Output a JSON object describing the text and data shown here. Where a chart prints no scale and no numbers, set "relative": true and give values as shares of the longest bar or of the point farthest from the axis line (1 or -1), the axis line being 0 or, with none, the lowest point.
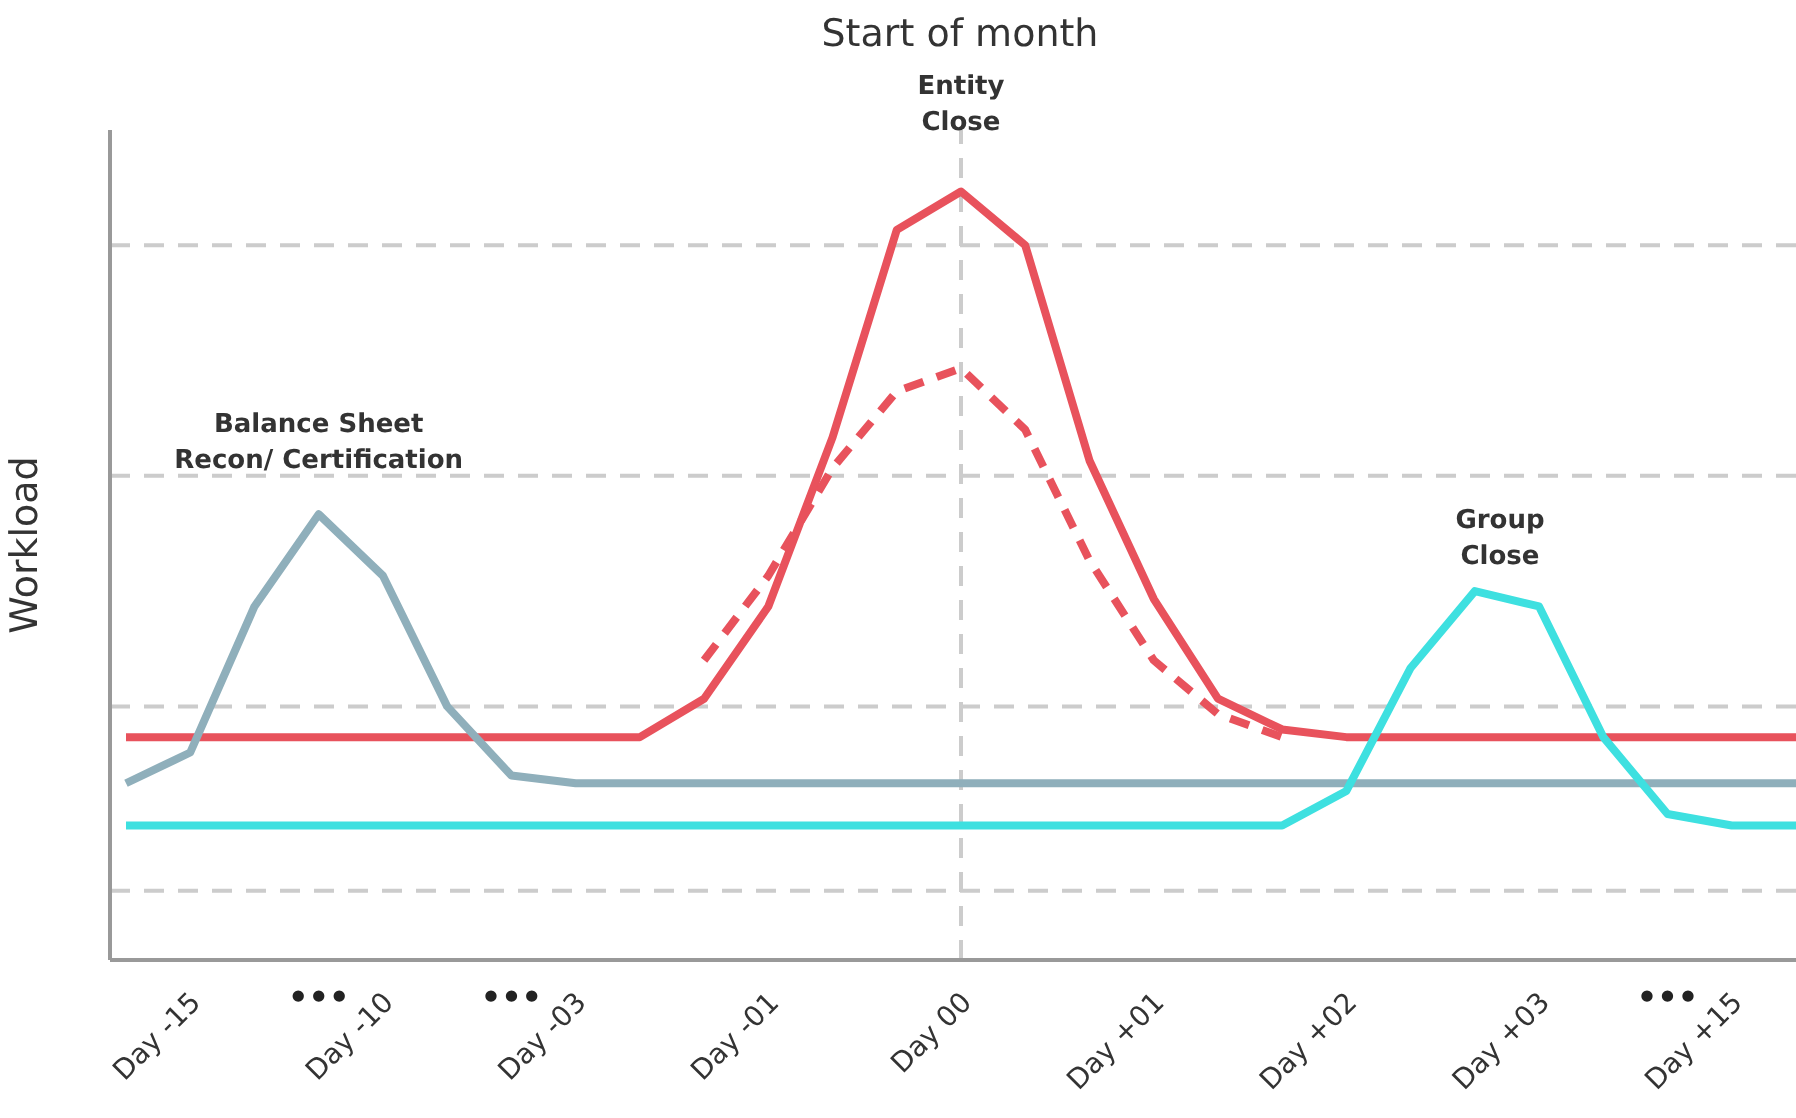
{
  "chart_data": {
    "type": "line",
    "title": "Start of month",
    "ylabel": "Workload",
    "relative": true,
    "marker": "none",
    "categories": [
      null,
      "Day -15",
      null,
      "•••",
      "Day -10",
      null,
      "•••",
      "Day -03",
      null,
      null,
      "Day -01",
      null,
      null,
      "Day 00",
      null,
      null,
      "Day +01",
      null,
      null,
      "Day +02",
      null,
      null,
      "Day +03",
      null,
      "•••",
      "Day +15",
      null
    ],
    "series": [
      {
        "color": "#e8525c",
        "line_style": "solid",
        "values": [
          0.29,
          0.29,
          0.29,
          0.29,
          0.29,
          0.29,
          0.29,
          0.29,
          0.29,
          0.34,
          0.46,
          0.68,
          0.95,
          1,
          0.93,
          0.65,
          0.47,
          0.34,
          0.3,
          0.29,
          0.29,
          0.29,
          0.29,
          0.29,
          0.29,
          0.29,
          0.29
        ]
      },
      {
        "color": "#e8525c",
        "line_style": "dashed",
        "values": [
          null,
          null,
          null,
          null,
          null,
          null,
          null,
          null,
          null,
          0.39,
          0.5,
          0.64,
          0.74,
          0.77,
          0.69,
          0.52,
          0.39,
          0.32,
          0.29,
          null,
          null,
          null,
          null,
          null,
          null,
          null,
          null
        ]
      },
      {
        "color": "#8fafbb",
        "line_style": "solid",
        "values": [
          0.23,
          0.27,
          0.46,
          0.58,
          0.5,
          0.33,
          0.24,
          0.23,
          0.23,
          0.23,
          0.23,
          0.23,
          0.23,
          0.23,
          0.23,
          0.23,
          0.23,
          0.23,
          0.23,
          0.23,
          0.23,
          0.23,
          0.23,
          0.23,
          0.23,
          0.23,
          0.23
        ]
      },
      {
        "color": "#3ee0e0",
        "line_style": "solid",
        "values": [
          0.175,
          0.175,
          0.175,
          0.175,
          0.175,
          0.175,
          0.175,
          0.175,
          0.175,
          0.175,
          0.175,
          0.175,
          0.175,
          0.175,
          0.175,
          0.175,
          0.175,
          0.175,
          0.175,
          0.22,
          0.38,
          0.48,
          0.46,
          0.29,
          0.19,
          0.175,
          0.175
        ]
      }
    ],
    "ref_lines": [
      {
        "axis": "x",
        "value": "Day 00",
        "color": "#cccccc",
        "line_style": "dashed"
      },
      {
        "axis": "y",
        "value": 0.93,
        "color": "#cccccc",
        "line_style": "dashed"
      },
      {
        "axis": "y",
        "value": 0.63,
        "color": "#cccccc",
        "line_style": "dashed"
      },
      {
        "axis": "y",
        "value": 0.33,
        "color": "#cccccc",
        "line_style": "dashed"
      },
      {
        "axis": "y",
        "value": 0.09,
        "color": "#cccccc",
        "line_style": "dashed"
      }
    ],
    "annotations": [
      {
        "text": "Entity\nClose",
        "x": "Day 00",
        "y": 1.08
      },
      {
        "text": "Balance Sheet\nRecon/ Certification",
        "x": "•••",
        "y": 0.64
      },
      "Group\nClose"
    ]
  }
}
